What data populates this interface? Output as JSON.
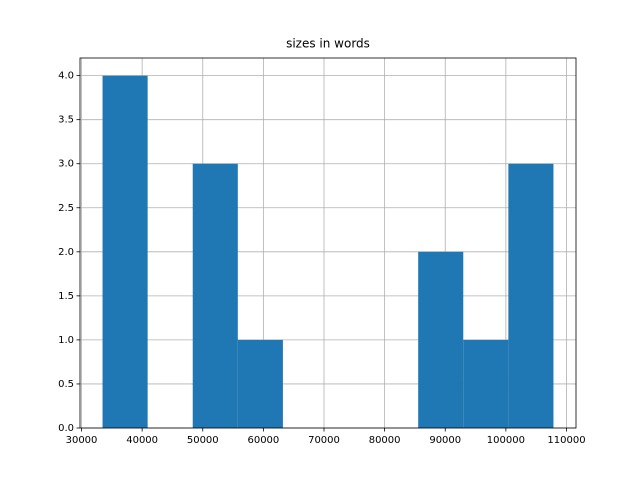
{
  "chart_data": {
    "type": "histogram",
    "title": "sizes in words",
    "bins": [
      33470,
      40908,
      48346,
      55784,
      63222,
      70660,
      78098,
      85536,
      92974,
      100412,
      107850
    ],
    "counts": [
      4,
      0,
      3,
      1,
      0,
      0,
      0,
      2,
      1,
      3
    ],
    "color": "#1f77b4",
    "xlim": [
      29751,
      111569
    ],
    "xticks": [
      30000,
      40000,
      50000,
      60000,
      70000,
      80000,
      90000,
      100000,
      110000
    ],
    "ylim": [
      0,
      4.2
    ],
    "yticks": [
      {
        "value": 0,
        "label": "0.0"
      },
      {
        "value": 0.5,
        "label": "0.5"
      },
      {
        "value": 1,
        "label": "1.0"
      },
      {
        "value": 1.5,
        "label": "1.5"
      },
      {
        "value": 2,
        "label": "2.0"
      },
      {
        "value": 2.5,
        "label": "2.5"
      },
      {
        "value": 3,
        "label": "3.0"
      },
      {
        "value": 3.5,
        "label": "3.5"
      },
      {
        "value": 4,
        "label": "4.0"
      }
    ],
    "grid": true
  }
}
